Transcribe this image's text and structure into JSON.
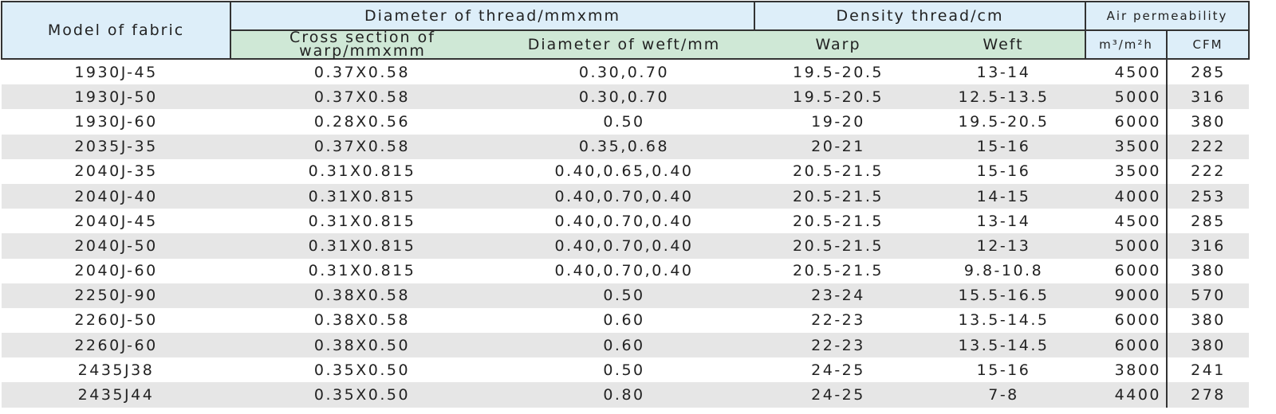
{
  "headers": {
    "model": "Model of fabric",
    "diameter": "Diameter of thread/mmxmm",
    "density": "Density thread/cm",
    "air": "Air permeability",
    "cross_section": "Cross section of warp/mmxmm",
    "diameter_weft": "Diameter of weft/mm",
    "warp": "Warp",
    "weft": "Weft",
    "m3": "m³/m²h",
    "cfm": "CFM"
  },
  "rows": [
    [
      "1930J-45",
      "0.37X0.58",
      "0.30,0.70",
      "19.5-20.5",
      "13-14",
      "4500",
      "285"
    ],
    [
      "1930J-50",
      "0.37X0.58",
      "0.30,0.70",
      "19.5-20.5",
      "12.5-13.5",
      "5000",
      "316"
    ],
    [
      "1930J-60",
      "0.28X0.56",
      "0.50",
      "19-20",
      "19.5-20.5",
      "6000",
      "380"
    ],
    [
      "2035J-35",
      "0.37X0.58",
      "0.35,0.68",
      "20-21",
      "15-16",
      "3500",
      "222"
    ],
    [
      "2040J-35",
      "0.31X0.815",
      "0.40,0.65,0.40",
      "20.5-21.5",
      "15-16",
      "3500",
      "222"
    ],
    [
      "2040J-40",
      "0.31X0.815",
      "0.40,0.70,0.40",
      "20.5-21.5",
      "14-15",
      "4000",
      "253"
    ],
    [
      "2040J-45",
      "0.31X0.815",
      "0.40,0.70,0.40",
      "20.5-21.5",
      "13-14",
      "4500",
      "285"
    ],
    [
      "2040J-50",
      "0.31X0.815",
      "0.40,0.70,0.40",
      "20.5-21.5",
      "12-13",
      "5000",
      "316"
    ],
    [
      "2040J-60",
      "0.31X0.815",
      "0.40,0.70,0.40",
      "20.5-21.5",
      "9.8-10.8",
      "6000",
      "380"
    ],
    [
      "2250J-90",
      "0.38X0.58",
      "0.50",
      "23-24",
      "15.5-16.5",
      "9000",
      "570"
    ],
    [
      "2260J-50",
      "0.38X0.58",
      "0.60",
      "22-23",
      "13.5-14.5",
      "6000",
      "380"
    ],
    [
      "2260J-60",
      "0.38X0.50",
      "0.60",
      "22-23",
      "13.5-14.5",
      "6000",
      "380"
    ],
    [
      "2435J38",
      "0.35X0.50",
      "0.50",
      "24-25",
      "15-16",
      "3800",
      "241"
    ],
    [
      "2435J44",
      "0.35X0.50",
      "0.80",
      "24-25",
      "7-8",
      "4400",
      "278"
    ]
  ],
  "colors": {
    "header_blue": "#ddeef9",
    "header_green": "#cfe8d6",
    "row_alt": "#e6e6e6"
  }
}
